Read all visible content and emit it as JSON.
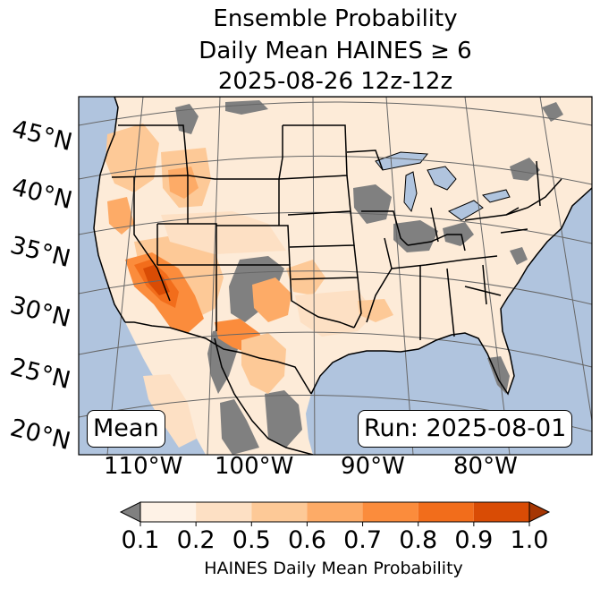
{
  "title": {
    "line1": "Ensemble Probability",
    "line2": "Daily Mean HAINES ≥ 6",
    "line3": "2025-08-26 12z-12z"
  },
  "latitude_labels": [
    "45°N",
    "40°N",
    "35°N",
    "30°N",
    "25°N",
    "20°N"
  ],
  "longitude_labels": [
    "110°W",
    "100°W",
    "90°W",
    "80°W"
  ],
  "stat_label": "Mean",
  "run_label": "Run: 2025-08-01",
  "colorbar": {
    "label": "HAINES Daily Mean Probability",
    "ticks": [
      "0.1",
      "0.2",
      "0.5",
      "0.6",
      "0.7",
      "0.8",
      "0.9",
      "1.0"
    ],
    "colors": [
      "#fef2e6",
      "#fde0c4",
      "#fdc997",
      "#fdab67",
      "#fb8c3c",
      "#f26d1b",
      "#d94c05"
    ],
    "under_color": "#808080",
    "over_color": "#a63603"
  },
  "colors": {
    "ocean": "#b0c4de",
    "land": "#fdebd8",
    "no_data": "#808080",
    "lakes": "#b0c4de"
  }
}
